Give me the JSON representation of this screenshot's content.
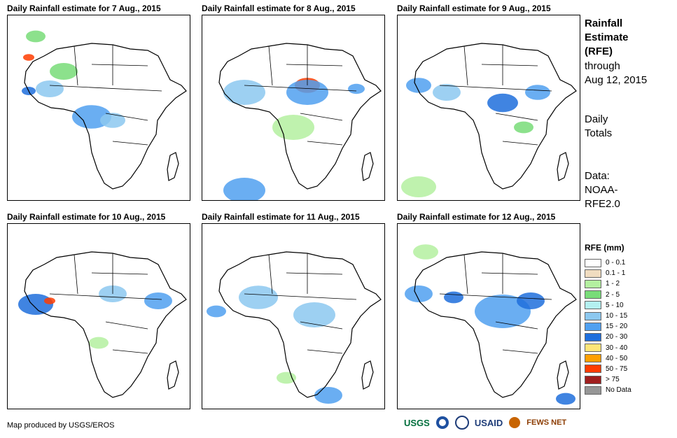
{
  "panels": [
    {
      "title": "Daily Rainfall estimate for 7 Aug., 2015"
    },
    {
      "title": "Daily Rainfall estimate for 8 Aug., 2015"
    },
    {
      "title": "Daily Rainfall estimate for 9 Aug., 2015"
    },
    {
      "title": "Daily Rainfall estimate for 10 Aug., 2015"
    },
    {
      "title": "Daily Rainfall estimate for 11 Aug., 2015"
    },
    {
      "title": "Daily Rainfall estimate for 12 Aug., 2015"
    }
  ],
  "side": {
    "title_line1": "Rainfall",
    "title_line2": "Estimate",
    "title_line3": "(RFE)",
    "through_line1": "through",
    "through_line2": "Aug 12, 2015",
    "totals_line1": "Daily",
    "totals_line2": "Totals",
    "data_line1": "Data:",
    "data_line2": "NOAA-",
    "data_line3": "RFE2.0"
  },
  "legend": {
    "title": "RFE (mm)",
    "items": [
      {
        "label": "0 - 0.1",
        "color": "#ffffff"
      },
      {
        "label": "0.1 - 1",
        "color": "#f0dcc0"
      },
      {
        "label": "1 - 2",
        "color": "#b4f0a0"
      },
      {
        "label": "2 - 5",
        "color": "#78dc78"
      },
      {
        "label": "5 - 10",
        "color": "#b4f0f0"
      },
      {
        "label": "10 - 15",
        "color": "#8cc8f0"
      },
      {
        "label": "15 - 20",
        "color": "#50a0f0"
      },
      {
        "label": "20 - 30",
        "color": "#1e6edc"
      },
      {
        "label": "30 - 40",
        "color": "#ffe678"
      },
      {
        "label": "40 - 50",
        "color": "#ffa000"
      },
      {
        "label": "50 - 75",
        "color": "#ff3c00"
      },
      {
        "label": "> 75",
        "color": "#a01e1e"
      },
      {
        "label": "No Data",
        "color": "#969696"
      }
    ]
  },
  "footer": {
    "credit": "Map produced by USGS/EROS"
  },
  "logos": {
    "usgs": "USGS",
    "usaid": "USAID",
    "fewsnet": "FEWS NET"
  }
}
